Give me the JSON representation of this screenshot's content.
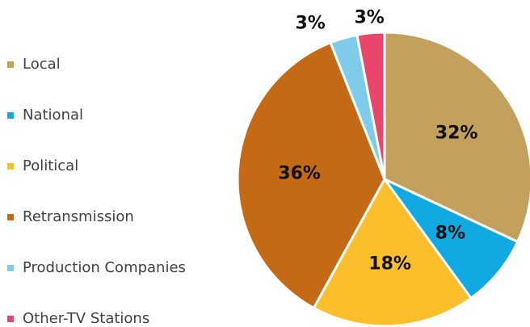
{
  "chart_data": {
    "type": "pie",
    "categories": [
      "Local",
      "National",
      "Political",
      "Retransmission",
      "Production Companies",
      "Other-TV Stations"
    ],
    "values": [
      32,
      8,
      18,
      36,
      3,
      3
    ],
    "value_labels": [
      "32%",
      "8%",
      "18%",
      "36%",
      "3%",
      "3%"
    ],
    "colors": [
      "#c3a15c",
      "#10a9e2",
      "#fbbf2b",
      "#c46a17",
      "#7fcbea",
      "#e8466a"
    ],
    "legend": "left"
  }
}
